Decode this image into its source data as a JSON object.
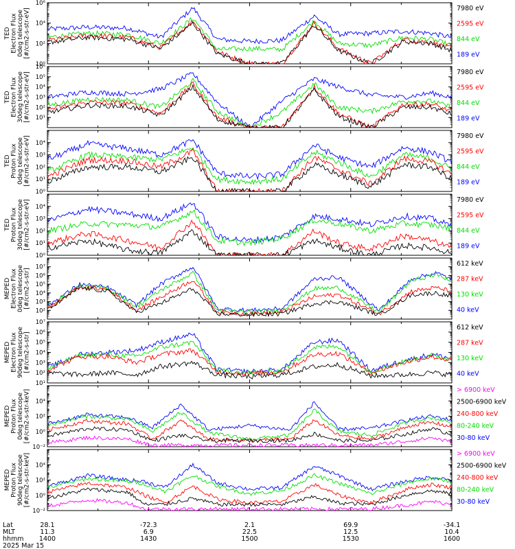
{
  "figure": {
    "date_label": "2025 Mar 15",
    "row_labels": [
      "Lat",
      "MLT",
      "hhmm"
    ],
    "axis_columns": [
      {
        "lat": "28.1",
        "mlt": "11.3",
        "hhmm": "1400"
      },
      {
        "lat": "-72.3",
        "mlt": "6.9",
        "hhmm": "1430"
      },
      {
        "lat": "2.1",
        "mlt": "22.5",
        "hhmm": "1500"
      },
      {
        "lat": "69.9",
        "mlt": "12.5",
        "hhmm": "1530"
      },
      {
        "lat": "-34.1",
        "mlt": "10.4",
        "hhmm": "1600"
      }
    ]
  },
  "colors": {
    "black": "#000000",
    "red": "#ff0000",
    "green": "#00e000",
    "blue": "#0000ff",
    "magenta": "#ff00ff"
  },
  "chart_data": [
    {
      "type": "line",
      "ylabel": [
        "TED",
        "Electron Flux",
        "0deg telescope",
        "[#/cm2-s-str-eV]"
      ],
      "ylim_exp": [
        0,
        6
      ],
      "tick_exps": [
        0,
        2,
        4,
        6
      ],
      "legend": [
        {
          "name": "7980 eV",
          "color": "#000000"
        },
        {
          "name": "2595 eV",
          "color": "#ff0000"
        },
        {
          "name": "844 eV",
          "color": "#00e000"
        },
        {
          "name": "189 eV",
          "color": "#0000ff"
        }
      ],
      "x": [
        0,
        0.1,
        0.2,
        0.28,
        0.36,
        0.42,
        0.5,
        0.58,
        0.66,
        0.72,
        0.8,
        0.88,
        0.95,
        1
      ],
      "series": [
        {
          "name": "189 eV",
          "values_exp": [
            3.4,
            3.6,
            3.5,
            2.6,
            5.5,
            2.4,
            2.2,
            2.3,
            4.7,
            2.9,
            3.0,
            3.2,
            3.0,
            2.6
          ]
        },
        {
          "name": "844 eV",
          "values_exp": [
            2.6,
            3.0,
            2.9,
            2.0,
            4.5,
            1.4,
            1.5,
            1.4,
            4.2,
            2.0,
            1.8,
            2.6,
            2.4,
            1.8
          ]
        },
        {
          "name": "2595 eV",
          "values_exp": [
            2.3,
            2.8,
            2.6,
            1.6,
            4.2,
            1.2,
            0,
            0,
            4.0,
            1.5,
            0,
            2.4,
            2.1,
            1.5
          ]
        },
        {
          "name": "7980 eV",
          "values_exp": [
            2.1,
            2.6,
            2.4,
            1.5,
            4.0,
            1.0,
            0,
            0,
            3.8,
            1.3,
            0,
            2.2,
            2.0,
            1.3
          ]
        }
      ]
    },
    {
      "type": "line",
      "ylabel": [
        "TED",
        "Electron Flux",
        "30deg telescope",
        "[#/cm2-s-str-eV]"
      ],
      "ylim_exp": [
        0,
        6
      ],
      "tick_exps": [
        1,
        2,
        3,
        4,
        5,
        6
      ],
      "legend": [
        {
          "name": "7980 eV",
          "color": "#000000"
        },
        {
          "name": "2595 eV",
          "color": "#ff0000"
        },
        {
          "name": "844 eV",
          "color": "#00e000"
        },
        {
          "name": "189 eV",
          "color": "#0000ff"
        }
      ],
      "x": [
        0,
        0.1,
        0.2,
        0.28,
        0.36,
        0.42,
        0.5,
        0.58,
        0.66,
        0.72,
        0.8,
        0.88,
        0.95,
        1
      ],
      "series": [
        {
          "name": "189 eV",
          "values_exp": [
            3.0,
            3.5,
            3.3,
            3.8,
            5.3,
            2.5,
            0,
            2.6,
            4.8,
            4.0,
            3.2,
            3.0,
            3.4,
            3.0
          ]
        },
        {
          "name": "844 eV",
          "values_exp": [
            2.2,
            2.8,
            2.7,
            2.0,
            4.6,
            1.6,
            0,
            1.5,
            4.3,
            2.0,
            1.6,
            2.6,
            2.6,
            2.0
          ]
        },
        {
          "name": "2595 eV",
          "values_exp": [
            1.8,
            2.5,
            2.4,
            1.4,
            4.3,
            1.0,
            0,
            0,
            4.0,
            1.4,
            0,
            2.3,
            2.3,
            1.6
          ]
        },
        {
          "name": "7980 eV",
          "values_exp": [
            1.5,
            2.2,
            2.1,
            1.2,
            4.0,
            0.8,
            0,
            0,
            3.7,
            1.1,
            0,
            2.0,
            2.0,
            1.3
          ]
        }
      ]
    },
    {
      "type": "line",
      "ylabel": [
        "TED",
        "Proton Flux",
        "0deg telescope",
        "[#/cm2-s-str-eV]"
      ],
      "ylim_exp": [
        0,
        5
      ],
      "tick_exps": [
        0,
        1,
        2,
        3,
        4
      ],
      "legend": [
        {
          "name": "7980 eV",
          "color": "#000000"
        },
        {
          "name": "2595 eV",
          "color": "#ff0000"
        },
        {
          "name": "844 eV",
          "color": "#00e000"
        },
        {
          "name": "189 eV",
          "color": "#0000ff"
        }
      ],
      "x": [
        0,
        0.1,
        0.2,
        0.28,
        0.36,
        0.42,
        0.5,
        0.58,
        0.66,
        0.72,
        0.8,
        0.88,
        0.95,
        1
      ],
      "series": [
        {
          "name": "189 eV",
          "values_exp": [
            2.6,
            3.9,
            3.5,
            3.0,
            4.2,
            1.5,
            1.2,
            1.4,
            3.8,
            2.8,
            2.0,
            3.6,
            3.2,
            2.4
          ]
        },
        {
          "name": "844 eV",
          "values_exp": [
            1.6,
            3.0,
            2.8,
            2.6,
            3.6,
            1.0,
            0.8,
            1.0,
            3.2,
            2.4,
            1.2,
            3.0,
            2.7,
            1.8
          ]
        },
        {
          "name": "2595 eV",
          "values_exp": [
            1.2,
            2.6,
            2.5,
            2.0,
            3.3,
            0,
            0,
            0,
            2.8,
            1.8,
            0.6,
            2.7,
            2.4,
            1.4
          ]
        },
        {
          "name": "7980 eV",
          "values_exp": [
            0.8,
            2.0,
            2.0,
            1.6,
            2.8,
            0,
            0,
            0,
            2.2,
            1.4,
            0.4,
            2.2,
            2.0,
            1.0
          ]
        }
      ]
    },
    {
      "type": "line",
      "ylabel": [
        "TED",
        "Proton Flux",
        "30deg telescope",
        "[#/cm2-s-str-eV]"
      ],
      "ylim_exp": [
        0,
        5
      ],
      "tick_exps": [
        0,
        1,
        2,
        3,
        4
      ],
      "legend": [
        {
          "name": "7980 eV",
          "color": "#000000"
        },
        {
          "name": "2595 eV",
          "color": "#ff0000"
        },
        {
          "name": "844 eV",
          "color": "#00e000"
        },
        {
          "name": "189 eV",
          "color": "#0000ff"
        }
      ],
      "x": [
        0,
        0.1,
        0.2,
        0.28,
        0.36,
        0.42,
        0.5,
        0.58,
        0.66,
        0.72,
        0.8,
        0.88,
        0.95,
        1
      ],
      "series": [
        {
          "name": "189 eV",
          "values_exp": [
            2.8,
            3.8,
            3.4,
            3.0,
            4.3,
            1.5,
            1.2,
            1.5,
            3.2,
            3.0,
            2.5,
            3.2,
            3.0,
            2.4
          ]
        },
        {
          "name": "844 eV",
          "values_exp": [
            2.0,
            2.6,
            2.5,
            2.3,
            3.6,
            1.2,
            1.0,
            1.4,
            2.9,
            2.6,
            2.0,
            2.6,
            2.5,
            2.2
          ]
        },
        {
          "name": "2595 eV",
          "values_exp": [
            1.0,
            1.8,
            1.2,
            0.6,
            2.8,
            0,
            0,
            0,
            2.0,
            1.0,
            0.5,
            1.6,
            1.2,
            0.6
          ]
        },
        {
          "name": "7980 eV",
          "values_exp": [
            0.6,
            1.2,
            0.4,
            0.2,
            2.0,
            0,
            0,
            0,
            1.2,
            0.6,
            0,
            0.8,
            0.6,
            0.2
          ]
        }
      ]
    },
    {
      "type": "line",
      "ylabel": [
        "MEPED",
        "Electron Flux",
        "0deg telescope",
        "[#/cm2-s-str]"
      ],
      "ylim_exp": [
        1,
        8
      ],
      "tick_exps": [
        2,
        3,
        4,
        5,
        6,
        7
      ],
      "legend": [
        {
          "name": "612 keV",
          "color": "#000000"
        },
        {
          "name": "287 keV",
          "color": "#ff0000"
        },
        {
          "name": "130 keV",
          "color": "#00e000"
        },
        {
          "name": "40 keV",
          "color": "#0000ff"
        }
      ],
      "x": [
        0,
        0.08,
        0.15,
        0.22,
        0.28,
        0.36,
        0.42,
        0.5,
        0.58,
        0.66,
        0.72,
        0.82,
        0.9,
        0.96,
        1
      ],
      "series": [
        {
          "name": "40 keV",
          "values_exp": [
            2.5,
            5.0,
            4.6,
            2.6,
            5.0,
            7.0,
            2.2,
            2.0,
            2.2,
            5.6,
            5.8,
            2.0,
            5.6,
            6.3,
            5.6
          ]
        },
        {
          "name": "130 keV",
          "values_exp": [
            2.4,
            4.8,
            4.5,
            2.4,
            4.3,
            6.3,
            2.0,
            1.8,
            2.0,
            4.5,
            4.6,
            1.8,
            5.4,
            6.1,
            5.4
          ]
        },
        {
          "name": "287 keV",
          "values_exp": [
            2.2,
            4.7,
            4.4,
            2.0,
            3.5,
            5.5,
            1.8,
            1.6,
            1.8,
            3.6,
            3.8,
            1.6,
            4.2,
            4.6,
            4.2
          ]
        },
        {
          "name": "612 keV",
          "values_exp": [
            2.0,
            4.6,
            4.2,
            1.8,
            2.8,
            4.5,
            1.6,
            1.5,
            1.6,
            2.8,
            3.0,
            1.5,
            3.8,
            4.0,
            3.6
          ]
        }
      ]
    },
    {
      "type": "line",
      "ylabel": [
        "MEPED",
        "Electron Flux",
        "90deg telescope",
        "[#/cm2-s-str]"
      ],
      "ylim_exp": [
        1,
        7
      ],
      "tick_exps": [
        1,
        2,
        3,
        4,
        5,
        6,
        7
      ],
      "legend": [
        {
          "name": "612 keV",
          "color": "#000000"
        },
        {
          "name": "287 keV",
          "color": "#ff0000"
        },
        {
          "name": "130 keV",
          "color": "#00e000"
        },
        {
          "name": "40 keV",
          "color": "#0000ff"
        }
      ],
      "x": [
        0,
        0.08,
        0.15,
        0.22,
        0.28,
        0.36,
        0.42,
        0.5,
        0.58,
        0.66,
        0.72,
        0.8,
        0.88,
        0.95,
        1
      ],
      "series": [
        {
          "name": "40 keV",
          "values_exp": [
            2.5,
            3.8,
            4.0,
            4.2,
            5.0,
            5.8,
            2.3,
            2.1,
            2.3,
            5.0,
            5.2,
            2.2,
            3.2,
            3.8,
            3.4
          ]
        },
        {
          "name": "130 keV",
          "values_exp": [
            2.4,
            3.7,
            3.8,
            3.6,
            4.5,
            5.0,
            2.2,
            2.0,
            2.2,
            4.5,
            4.6,
            2.1,
            3.1,
            3.7,
            3.3
          ]
        },
        {
          "name": "287 keV",
          "values_exp": [
            2.3,
            3.6,
            3.6,
            3.0,
            3.8,
            4.2,
            2.1,
            1.9,
            2.1,
            3.8,
            3.9,
            2.0,
            3.0,
            3.6,
            3.2
          ]
        },
        {
          "name": "612 keV",
          "values_exp": [
            2.0,
            1.8,
            2.0,
            1.8,
            2.6,
            3.0,
            1.8,
            1.6,
            1.8,
            2.6,
            2.8,
            1.7,
            1.8,
            2.0,
            1.8
          ]
        }
      ]
    },
    {
      "type": "line",
      "ylabel": [
        "MEPED",
        "Proton Flux",
        "0deg telescope",
        "[#/cm2-s-str-keV]"
      ],
      "ylim_exp": [
        -2,
        6
      ],
      "tick_exps": [
        -2,
        0,
        2,
        4
      ],
      "legend": [
        {
          "name": "> 6900 keV",
          "color": "#ff00ff"
        },
        {
          "name": "2500-6900 keV",
          "color": "#000000"
        },
        {
          "name": "240-800 keV",
          "color": "#ff0000"
        },
        {
          "name": "80-240 keV",
          "color": "#00e000"
        },
        {
          "name": "30-80 keV",
          "color": "#0000ff"
        }
      ],
      "x": [
        0,
        0.1,
        0.2,
        0.26,
        0.33,
        0.4,
        0.5,
        0.6,
        0.66,
        0.72,
        0.8,
        0.9,
        0.95,
        1
      ],
      "series": [
        {
          "name": "30-80 keV",
          "values_exp": [
            1.0,
            2.2,
            1.8,
            0.5,
            3.5,
            0.2,
            0.8,
            0.2,
            3.8,
            0.3,
            0.4,
            1.6,
            2.0,
            1.5
          ]
        },
        {
          "name": "80-240 keV",
          "values_exp": [
            0.8,
            2.0,
            1.6,
            0.0,
            2.5,
            -0.2,
            -1.0,
            -0.5,
            2.8,
            0.0,
            -0.5,
            1.4,
            1.8,
            1.2
          ]
        },
        {
          "name": "240-800 keV",
          "values_exp": [
            0.2,
            1.4,
            1.0,
            -1.0,
            1.4,
            -1.0,
            -1.2,
            -1.0,
            1.5,
            -0.5,
            -1.0,
            0.8,
            1.2,
            0.6
          ]
        },
        {
          "name": "2500-6900 keV",
          "values_exp": [
            -0.6,
            0.4,
            0.2,
            -1.2,
            -0.5,
            -1.2,
            -1.2,
            -1.2,
            -0.3,
            -1.2,
            -1.2,
            -0.2,
            0.4,
            -0.4
          ]
        },
        {
          "name": "> 6900 keV",
          "values_exp": [
            -1.5,
            -0.8,
            -1.0,
            -1.8,
            -1.8,
            -1.8,
            -1.8,
            -1.8,
            -1.8,
            -1.8,
            -1.8,
            -1.2,
            -0.8,
            -1.4
          ]
        }
      ]
    },
    {
      "type": "line",
      "ylabel": [
        "MEPED",
        "Proton Flux",
        "90deg telescope",
        "[#/cm2-s-str-keV]"
      ],
      "ylim_exp": [
        -2,
        6
      ],
      "tick_exps": [
        -2,
        0,
        2,
        4
      ],
      "legend": [
        {
          "name": "> 6900 keV",
          "color": "#ff00ff"
        },
        {
          "name": "2500-6900 keV",
          "color": "#000000"
        },
        {
          "name": "240-800 keV",
          "color": "#ff0000"
        },
        {
          "name": "80-240 keV",
          "color": "#00e000"
        },
        {
          "name": "30-80 keV",
          "color": "#0000ff"
        }
      ],
      "x": [
        0,
        0.1,
        0.2,
        0.24,
        0.29,
        0.36,
        0.42,
        0.5,
        0.58,
        0.66,
        0.72,
        0.8,
        0.9,
        0.95,
        1
      ],
      "series": [
        {
          "name": "30-80 keV",
          "values_exp": [
            1.2,
            2.6,
            2.0,
            1.8,
            1.0,
            4.0,
            1.6,
            0.8,
            1.0,
            3.8,
            2.6,
            0.8,
            2.0,
            2.4,
            2.0
          ]
        },
        {
          "name": "80-240 keV",
          "values_exp": [
            1.0,
            2.2,
            1.8,
            1.5,
            0.5,
            2.6,
            1.2,
            0.2,
            0.6,
            2.6,
            1.6,
            0.2,
            1.8,
            2.2,
            1.8
          ]
        },
        {
          "name": "240-800 keV",
          "values_exp": [
            0.4,
            1.6,
            1.0,
            0.0,
            -1.0,
            1.2,
            -0.5,
            -1.0,
            -0.8,
            1.4,
            0.0,
            -1.0,
            1.0,
            1.4,
            1.0
          ]
        },
        {
          "name": "2500-6900 keV",
          "values_exp": [
            -0.4,
            0.8,
            0.4,
            -1.2,
            -1.2,
            -0.4,
            -1.2,
            -1.2,
            -1.2,
            -0.2,
            -1.0,
            -1.2,
            0.2,
            0.6,
            0.2
          ]
        },
        {
          "name": "> 6900 keV",
          "values_exp": [
            -1.4,
            -0.6,
            -1.0,
            -1.8,
            -1.8,
            -1.8,
            -1.8,
            -1.8,
            -1.8,
            -1.8,
            -1.8,
            -1.8,
            -1.2,
            -0.8,
            -1.2
          ]
        }
      ]
    }
  ]
}
